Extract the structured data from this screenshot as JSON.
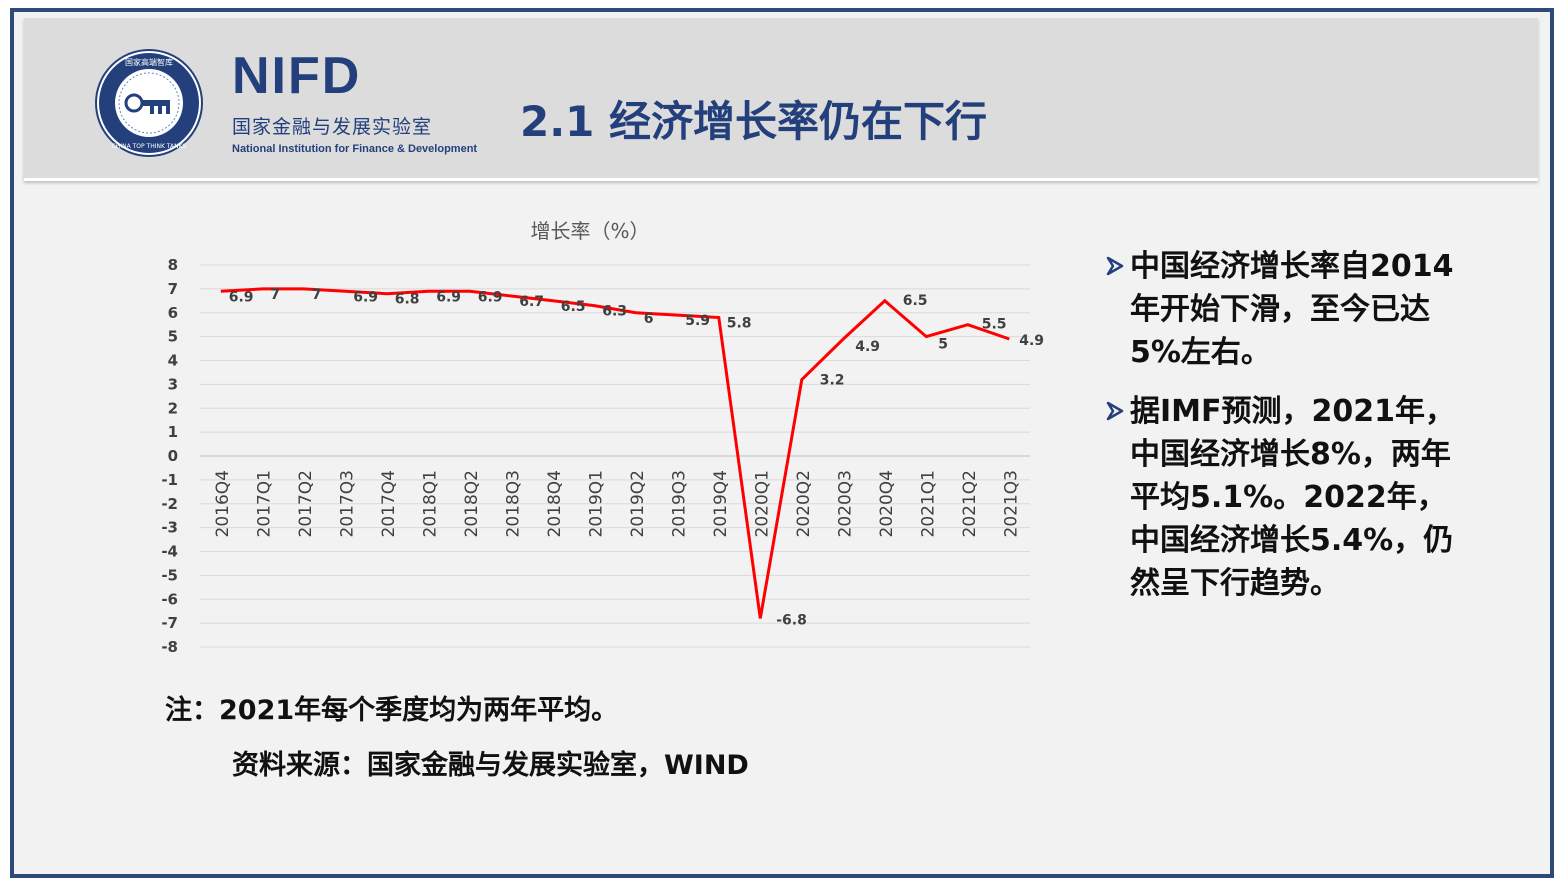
{
  "header": {
    "seal_text_cn": "国家高端智库",
    "seal_text_en": "CHINA TOP THINK TANKS",
    "brand_name": "NIFD",
    "brand_cn": "国家金融与发展实验室",
    "brand_en": "National Institution for Finance & Development",
    "title": "2.1 经济增长率仍在下行"
  },
  "colors": {
    "accent": "#24407c",
    "line": "#ff0000",
    "border": "#2e4a78"
  },
  "chart_data": {
    "type": "line",
    "title": "增长率（%）",
    "categories": [
      "2016Q4",
      "2017Q1",
      "2017Q2",
      "2017Q3",
      "2017Q4",
      "2018Q1",
      "2018Q2",
      "2018Q3",
      "2018Q4",
      "2019Q1",
      "2019Q2",
      "2019Q3",
      "2019Q4",
      "2020Q1",
      "2020Q2",
      "2020Q3",
      "2020Q4",
      "2021Q1",
      "2021Q2",
      "2021Q3"
    ],
    "values": [
      6.9,
      7,
      7,
      6.9,
      6.8,
      6.9,
      6.9,
      6.7,
      6.5,
      6.3,
      6,
      5.9,
      5.8,
      -6.8,
      3.2,
      4.9,
      6.5,
      5,
      5.5,
      4.9
    ],
    "data_labels": [
      "6.9",
      "7",
      "7",
      "6.9",
      "6.8",
      "6.9",
      "6.9",
      "6.7",
      "6.5",
      "6.3",
      "6",
      "5.9",
      "5.8",
      "-6.8",
      "3.2",
      "4.9",
      "6.5",
      "5",
      "5.5",
      "4.9"
    ],
    "y_ticks": [
      "8",
      "7",
      "6",
      "5",
      "4",
      "3",
      "2",
      "1",
      "0",
      "-1",
      "-2",
      "-3",
      "-4",
      "-5",
      "-6",
      "-7",
      "-8"
    ],
    "ylim": [
      -8,
      8
    ],
    "grid": true,
    "legend": "none"
  },
  "bullets": [
    "中国经济增长率自2014年开始下滑，至今已达5%左右。",
    "据IMF预测，2021年，中国经济增长8%，两年平均5.1%。2022年，中国经济增长5.4%，仍然呈下行趋势。"
  ],
  "note": "注：2021年每个季度均为两年平均。",
  "source": "资料来源：国家金融与发展实验室，WIND"
}
